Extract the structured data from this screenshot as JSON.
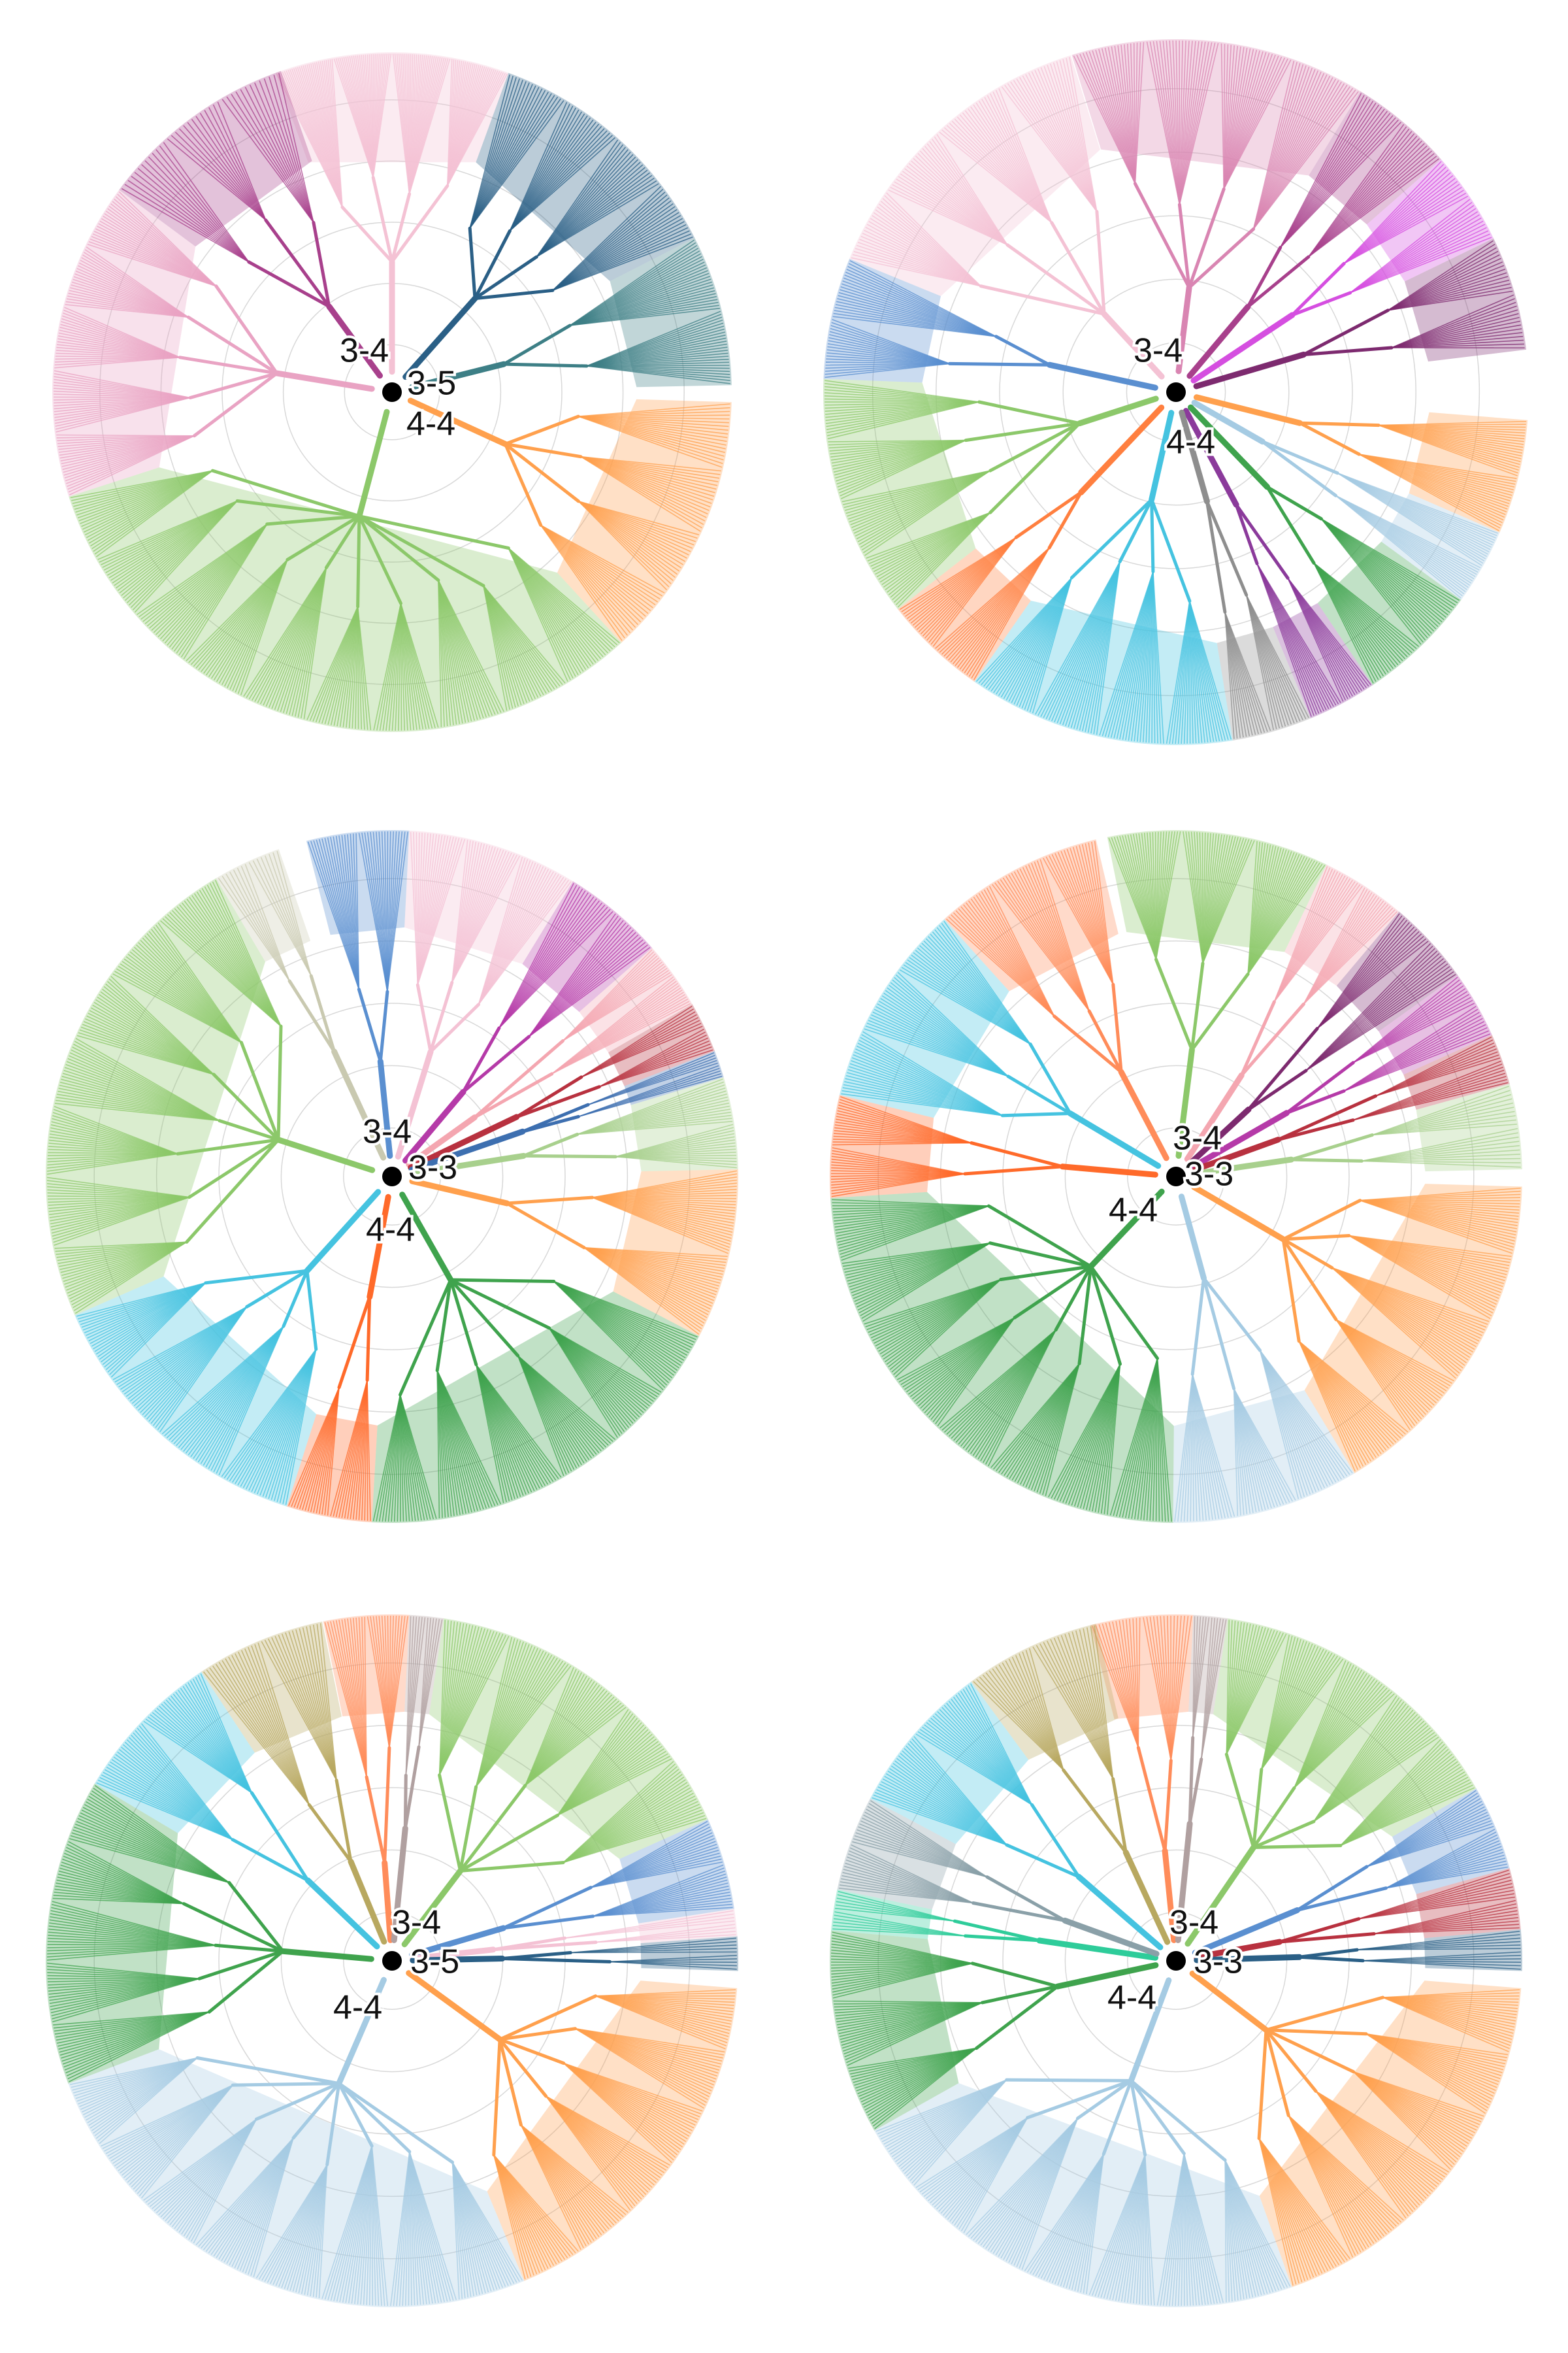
{
  "figure": {
    "panels": [
      {
        "id": "top-left",
        "center_labels": [
          "3-4",
          "3-5",
          "4-4"
        ],
        "sectors": [
          {
            "color": "#f4c2d4",
            "from": -0.35,
            "to": 0.35,
            "branches": 120
          },
          {
            "color": "#2a5f86",
            "from": 0.35,
            "to": 1.1,
            "branches": 70
          },
          {
            "color": "#3d7f86",
            "from": 1.1,
            "to": 1.55,
            "branches": 50
          },
          {
            "color": "#ffffff",
            "from": 1.55,
            "to": 1.6,
            "branches": 0
          },
          {
            "color": "#ffa04d",
            "from": 1.6,
            "to": 2.4,
            "branches": 70
          },
          {
            "color": "#8cc86a",
            "from": 2.4,
            "to": 4.4,
            "branches": 220
          },
          {
            "color": "#e9a3c3",
            "from": 4.4,
            "to": 5.35,
            "branches": 110
          },
          {
            "color": "#a8408c",
            "from": 5.35,
            "to": 5.95,
            "branches": 40
          },
          {
            "color": "#f0b8cc",
            "from": 5.95,
            "to": 5.93,
            "branches": 0
          }
        ]
      },
      {
        "id": "top-right",
        "center_labels": [
          "3-4",
          "4-4"
        ],
        "sectors": [
          {
            "color": "#d985b2",
            "from": -0.3,
            "to": 0.55,
            "branches": 90
          },
          {
            "color": "#a8408c",
            "from": 0.55,
            "to": 0.85,
            "branches": 30
          },
          {
            "color": "#d54ee0",
            "from": 0.85,
            "to": 1.12,
            "branches": 25
          },
          {
            "color": "#7d2a6f",
            "from": 1.12,
            "to": 1.45,
            "branches": 30
          },
          {
            "color": "#ffa04d",
            "from": 1.65,
            "to": 1.98,
            "branches": 40
          },
          {
            "color": "#a5cbe3",
            "from": 1.98,
            "to": 2.2,
            "branches": 30
          },
          {
            "color": "#3fa34d",
            "from": 2.2,
            "to": 2.55,
            "branches": 40
          },
          {
            "color": "#8b3a9b",
            "from": 2.55,
            "to": 2.75,
            "branches": 25
          },
          {
            "color": "#8e8e8e",
            "from": 2.75,
            "to": 2.98,
            "branches": 25
          },
          {
            "color": "#45c3e0",
            "from": 2.98,
            "to": 3.75,
            "branches": 90
          },
          {
            "color": "#ff7f3f",
            "from": 3.75,
            "to": 4.05,
            "branches": 35
          },
          {
            "color": "#8cc86a",
            "from": 4.05,
            "to": 4.75,
            "branches": 80
          },
          {
            "color": "#5a8fd0",
            "from": 4.75,
            "to": 5.1,
            "branches": 40
          },
          {
            "color": "#f4c2d4",
            "from": 5.1,
            "to": 5.98,
            "branches": 90
          }
        ]
      },
      {
        "id": "middle-left",
        "center_labels": [
          "3-4",
          "3-3",
          "4-4"
        ],
        "sectors": [
          {
            "color": "#5a8fd0",
            "from": -0.25,
            "to": 0.05,
            "branches": 35
          },
          {
            "color": "#f4c2d4",
            "from": 0.05,
            "to": 0.55,
            "branches": 60
          },
          {
            "color": "#b53aa8",
            "from": 0.55,
            "to": 0.85,
            "branches": 30
          },
          {
            "color": "#f4a6b0",
            "from": 0.85,
            "to": 1.05,
            "branches": 25
          },
          {
            "color": "#b8313f",
            "from": 1.05,
            "to": 1.2,
            "branches": 15
          },
          {
            "color": "#3d6fb0",
            "from": 1.2,
            "to": 1.28,
            "branches": 10
          },
          {
            "color": "#a8d08d",
            "from": 1.28,
            "to": 1.55,
            "branches": 30
          },
          {
            "color": "#ffa04d",
            "from": 1.55,
            "to": 2.05,
            "branches": 55
          },
          {
            "color": "#3fa34d",
            "from": 2.05,
            "to": 3.2,
            "branches": 130
          },
          {
            "color": "#ff6a2a",
            "from": 3.2,
            "to": 3.45,
            "branches": 30
          },
          {
            "color": "#45c3e0",
            "from": 3.45,
            "to": 4.3,
            "branches": 95
          },
          {
            "color": "#8cc86a",
            "from": 4.3,
            "to": 5.75,
            "branches": 160
          },
          {
            "color": "#c9c9b0",
            "from": 5.75,
            "to": 5.95,
            "branches": 15
          }
        ]
      },
      {
        "id": "middle-right",
        "center_labels": [
          "3-4",
          "3-3",
          "4-4"
        ],
        "sectors": [
          {
            "color": "#8cc86a",
            "from": -0.2,
            "to": 0.45,
            "branches": 80
          },
          {
            "color": "#f4a6b0",
            "from": 0.45,
            "to": 0.7,
            "branches": 30
          },
          {
            "color": "#7d2a6f",
            "from": 0.7,
            "to": 0.95,
            "branches": 25
          },
          {
            "color": "#b53aa8",
            "from": 0.95,
            "to": 1.15,
            "branches": 20
          },
          {
            "color": "#b8313f",
            "from": 1.15,
            "to": 1.3,
            "branches": 15
          },
          {
            "color": "#a8d08d",
            "from": 1.3,
            "to": 1.55,
            "branches": 20
          },
          {
            "color": "#ffa04d",
            "from": 1.6,
            "to": 2.6,
            "branches": 110
          },
          {
            "color": "#a5cbe3",
            "from": 2.6,
            "to": 3.15,
            "branches": 60
          },
          {
            "color": "#3fa34d",
            "from": 3.15,
            "to": 4.65,
            "branches": 170
          },
          {
            "color": "#ff6a2a",
            "from": 4.65,
            "to": 4.95,
            "branches": 35
          },
          {
            "color": "#45c3e0",
            "from": 4.95,
            "to": 5.55,
            "branches": 65
          },
          {
            "color": "#ff8c5a",
            "from": 5.55,
            "to": 6.05,
            "branches": 55
          }
        ]
      },
      {
        "id": "bottom-left",
        "center_labels": [
          "3-4",
          "3-5",
          "4-4"
        ],
        "sectors": [
          {
            "color": "#ff8c5a",
            "from": -0.2,
            "to": 0.05,
            "branches": 30
          },
          {
            "color": "#b0a0a0",
            "from": 0.05,
            "to": 0.15,
            "branches": 12
          },
          {
            "color": "#8cc86a",
            "from": 0.15,
            "to": 1.15,
            "branches": 110
          },
          {
            "color": "#5a8fd0",
            "from": 1.15,
            "to": 1.42,
            "branches": 30
          },
          {
            "color": "#f4c2d4",
            "from": 1.42,
            "to": 1.5,
            "branches": 8
          },
          {
            "color": "#2a5f86",
            "from": 1.5,
            "to": 1.6,
            "branches": 10
          },
          {
            "color": "#ffa04d",
            "from": 1.65,
            "to": 2.75,
            "branches": 120
          },
          {
            "color": "#a5cbe3",
            "from": 2.75,
            "to": 4.35,
            "branches": 180
          },
          {
            "color": "#3fa34d",
            "from": 4.35,
            "to": 5.25,
            "branches": 100
          },
          {
            "color": "#45c3e0",
            "from": 5.25,
            "to": 5.7,
            "branches": 50
          },
          {
            "color": "#b8a860",
            "from": 5.7,
            "to": 6.08,
            "branches": 35
          }
        ]
      },
      {
        "id": "bottom-right",
        "center_labels": [
          "3-4",
          "3-3",
          "4-4"
        ],
        "sectors": [
          {
            "color": "#ff8c5a",
            "from": -0.25,
            "to": 0.05,
            "branches": 30
          },
          {
            "color": "#b0a0a0",
            "from": 0.05,
            "to": 0.15,
            "branches": 12
          },
          {
            "color": "#8cc86a",
            "from": 0.15,
            "to": 1.05,
            "branches": 100
          },
          {
            "color": "#5a8fd0",
            "from": 1.05,
            "to": 1.3,
            "branches": 28
          },
          {
            "color": "#b8313f",
            "from": 1.3,
            "to": 1.48,
            "branches": 18
          },
          {
            "color": "#2a5f86",
            "from": 1.48,
            "to": 1.6,
            "branches": 12
          },
          {
            "color": "#ffa04d",
            "from": 1.65,
            "to": 2.8,
            "branches": 125
          },
          {
            "color": "#a5cbe3",
            "from": 2.8,
            "to": 4.2,
            "branches": 160
          },
          {
            "color": "#3fa34d",
            "from": 4.2,
            "to": 4.8,
            "branches": 70
          },
          {
            "color": "#2ecc9a",
            "from": 4.8,
            "to": 4.92,
            "branches": 12
          },
          {
            "color": "#8aa0a8",
            "from": 4.92,
            "to": 5.2,
            "branches": 30
          },
          {
            "color": "#45c3e0",
            "from": 5.2,
            "to": 5.65,
            "branches": 50
          },
          {
            "color": "#b8a860",
            "from": 5.65,
            "to": 6.05,
            "branches": 35
          }
        ]
      }
    ]
  }
}
